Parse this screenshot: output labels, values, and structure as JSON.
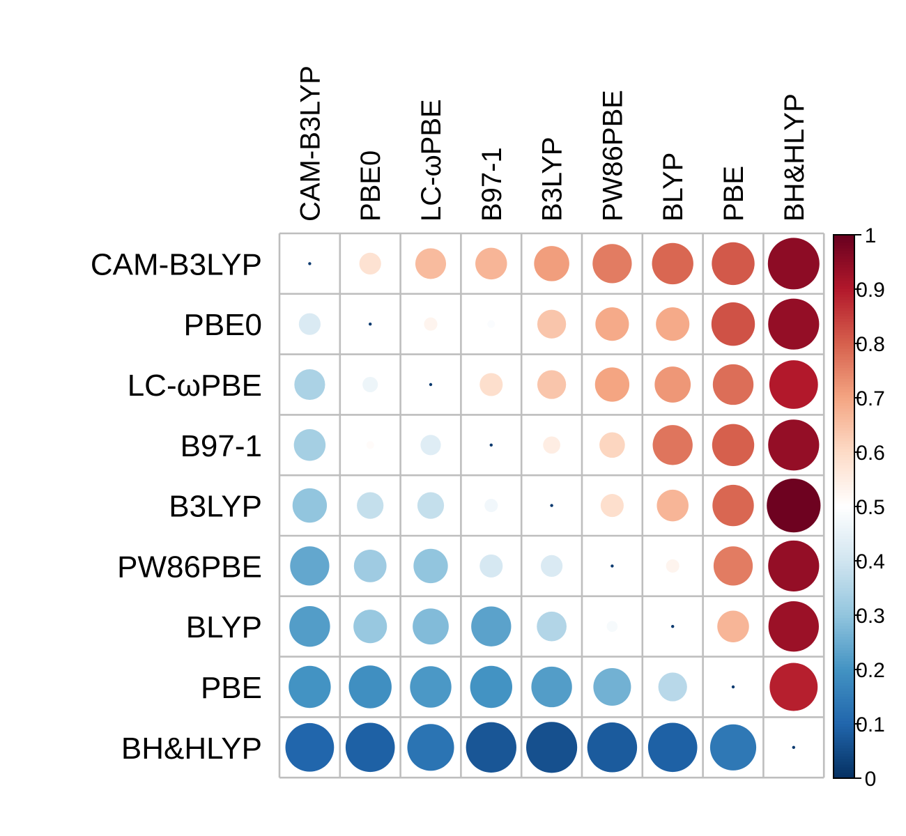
{
  "chart_data": {
    "type": "heatmap",
    "subtype": "correlation-circle",
    "title": "",
    "xlabel": "",
    "ylabel": "",
    "row_labels": [
      "CAM-B3LYP",
      "PBE0",
      "LC-ωPBE",
      "B97-1",
      "B3LYP",
      "PW86PBE",
      "BLYP",
      "PBE",
      "BH&HLYP"
    ],
    "col_labels": [
      "CAM-B3LYP",
      "PBE0",
      "LC-ωPBE",
      "B97-1",
      "B3LYP",
      "PW86PBE",
      "BLYP",
      "PBE",
      "BH&HLYP"
    ],
    "values": [
      [
        0.5,
        0.58,
        0.66,
        0.67,
        0.71,
        0.76,
        0.79,
        0.81,
        0.95
      ],
      [
        0.42,
        0.5,
        0.53,
        0.49,
        0.64,
        0.69,
        0.69,
        0.82,
        0.94
      ],
      [
        0.34,
        0.46,
        0.5,
        0.59,
        0.64,
        0.7,
        0.72,
        0.78,
        0.9
      ],
      [
        0.33,
        0.51,
        0.43,
        0.5,
        0.55,
        0.61,
        0.77,
        0.8,
        0.94
      ],
      [
        0.3,
        0.38,
        0.38,
        0.47,
        0.5,
        0.59,
        0.67,
        0.79,
        0.99
      ],
      [
        0.24,
        0.32,
        0.3,
        0.41,
        0.42,
        0.5,
        0.53,
        0.76,
        0.94
      ],
      [
        0.22,
        0.31,
        0.28,
        0.23,
        0.35,
        0.48,
        0.5,
        0.67,
        0.93
      ],
      [
        0.2,
        0.19,
        0.21,
        0.2,
        0.22,
        0.26,
        0.36,
        0.5,
        0.89
      ],
      [
        0.1,
        0.09,
        0.13,
        0.07,
        0.06,
        0.08,
        0.09,
        0.14,
        0.5
      ]
    ],
    "colorbar": {
      "range": [
        0,
        1
      ],
      "ticks": [
        "0",
        "0.1",
        "0.2",
        "0.3",
        "0.4",
        "0.5",
        "0.6",
        "0.7",
        "0.8",
        "0.9",
        "1"
      ],
      "colors": [
        "#053061",
        "#2166AC",
        "#4393C3",
        "#92C5DE",
        "#D1E5F0",
        "#FFFFFF",
        "#FDDBC7",
        "#F4A582",
        "#D6604D",
        "#B2182B",
        "#67001F"
      ]
    },
    "grid_color": "#BEBEBE",
    "legend_position": "right"
  }
}
